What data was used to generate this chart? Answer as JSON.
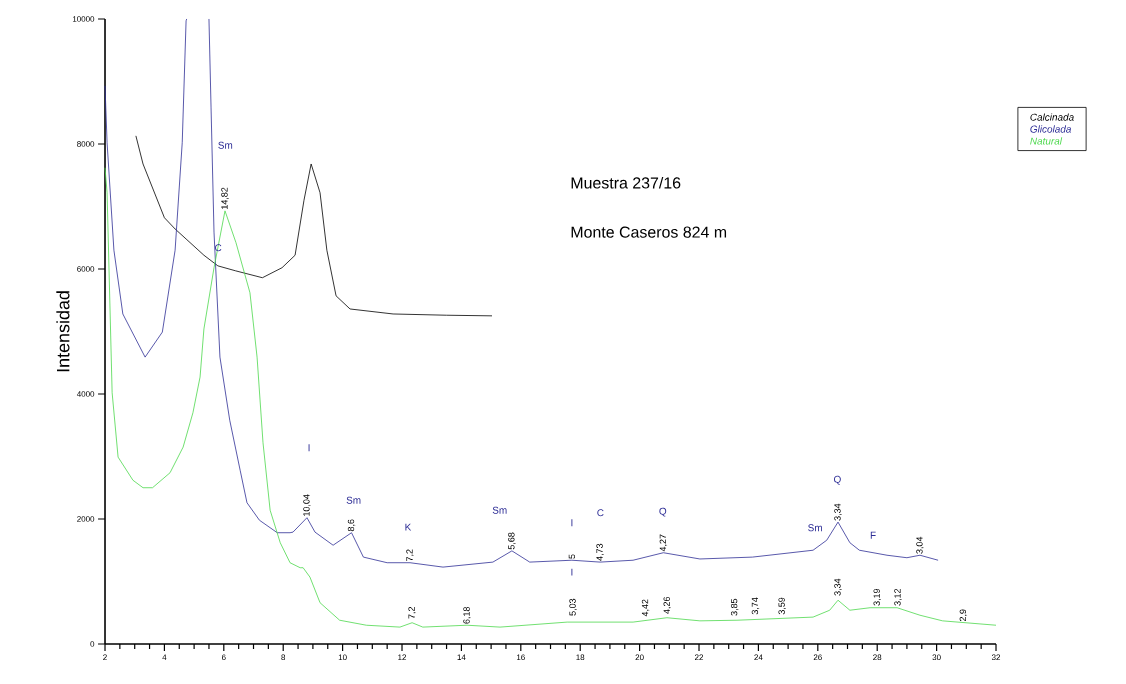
{
  "chart_data": {
    "type": "line",
    "ylabel": "Intensidad",
    "xlim": [
      2,
      32
    ],
    "ylim": [
      0,
      10000
    ],
    "xticks": [
      2,
      4,
      6,
      8,
      10,
      12,
      14,
      16,
      18,
      20,
      22,
      24,
      26,
      28,
      30,
      32
    ],
    "yticks": [
      0,
      2000,
      4000,
      6000,
      8000,
      10000
    ],
    "grid": false,
    "legend": "top right",
    "series": [
      {
        "name": "Calcinada",
        "color": "#000000",
        "x": [
          3.04,
          3.28,
          4.0,
          4.36,
          4.73,
          5.33,
          5.8,
          6.4,
          7.3,
          7.96,
          8.4,
          8.7,
          8.94,
          9.24,
          9.47,
          9.78,
          10.25,
          11.7,
          13.5,
          15.03
        ],
        "values": [
          8130,
          7680,
          6820,
          6640,
          6480,
          6220,
          6050,
          5970,
          5860,
          6020,
          6220,
          7100,
          7680,
          7220,
          6300,
          5570,
          5360,
          5280,
          5260,
          5250
        ]
      },
      {
        "name": "Glicolada",
        "color": "#2e2e96",
        "x": [
          2.0,
          2.07,
          2.3,
          2.6,
          3.35,
          3.93,
          4.36,
          4.6,
          4.73,
          4.75,
          5.1,
          5.5,
          5.57,
          5.67,
          5.87,
          6.2,
          6.55,
          6.78,
          7.2,
          7.8,
          8.23,
          8.33,
          8.8,
          9.07,
          9.68,
          10.3,
          10.7,
          11.5,
          12.27,
          13.38,
          15.06,
          15.7,
          16.3,
          17.72,
          18.67,
          19.78,
          20.8,
          22.03,
          23.8,
          25.84,
          26.3,
          26.68,
          27.08,
          27.4,
          28.33,
          29.0,
          29.44,
          30.05
        ],
        "values": [
          8930,
          8020,
          6300,
          5280,
          4590,
          4990,
          6300,
          8020,
          9970,
          10000,
          null,
          10000,
          8590,
          6590,
          4590,
          3580,
          2780,
          2260,
          1980,
          1780,
          1780,
          1790,
          2020,
          1790,
          1580,
          1780,
          1390,
          1300,
          1300,
          1230,
          1310,
          1490,
          1310,
          1340,
          1310,
          1340,
          1460,
          1360,
          1390,
          1500,
          1660,
          1950,
          1620,
          1500,
          1420,
          1380,
          1420,
          1340
        ]
      },
      {
        "name": "Natural",
        "color": "#4cd84c",
        "x": [
          2.0,
          2.07,
          2.24,
          2.44,
          2.94,
          3.28,
          3.6,
          4.19,
          4.63,
          4.96,
          5.2,
          5.33,
          5.67,
          6.04,
          6.41,
          6.88,
          7.12,
          7.32,
          7.56,
          7.9,
          8.23,
          8.57,
          8.67,
          8.9,
          9.24,
          9.9,
          10.8,
          11.93,
          12.34,
          12.7,
          14.19,
          15.3,
          17.56,
          19.78,
          20.92,
          22.03,
          23.28,
          25.84,
          26.4,
          26.68,
          27.08,
          27.76,
          28.67,
          29.44,
          30.2,
          32.0
        ],
        "values": [
          7620,
          7220,
          4020,
          2990,
          2620,
          2500,
          2500,
          2740,
          3150,
          3700,
          4270,
          5040,
          6020,
          6930,
          6420,
          5620,
          4590,
          3220,
          2140,
          1620,
          1300,
          1220,
          1220,
          1070,
          660,
          380,
          300,
          270,
          340,
          270,
          300,
          270,
          350,
          350,
          420,
          370,
          380,
          430,
          540,
          700,
          540,
          580,
          580,
          460,
          370,
          300
        ]
      }
    ],
    "annotations": [
      "Muestra 237/16",
      "Monte Caseros 824 m",
      "Sm",
      "C",
      "I",
      "Sm",
      "K",
      "Sm",
      "I",
      "I",
      "C",
      "Q",
      "Sm",
      "Q",
      "F",
      {
        "text": "14,82",
        "x": 6.04,
        "y": 6930
      },
      {
        "text": "10,04",
        "x": 8.8,
        "y": 2020
      },
      {
        "text": "8,6",
        "x": 10.3,
        "y": 1780
      },
      {
        "text": "7,2",
        "x": 12.27,
        "y": 1300
      },
      {
        "text": "5,68",
        "x": 15.7,
        "y": 1490
      },
      {
        "text": "5",
        "x": 17.72,
        "y": 1340
      },
      {
        "text": "4,73",
        "x": 18.67,
        "y": 1310
      },
      {
        "text": "4,27",
        "x": 20.8,
        "y": 1460
      },
      {
        "text": "3,34",
        "x": 26.68,
        "y": 1950
      },
      {
        "text": "3,04",
        "x": 29.44,
        "y": 1420
      },
      {
        "text": "7,2",
        "x": 12.34,
        "y": 380
      },
      {
        "text": "6,18",
        "x": 14.19,
        "y": 300
      },
      {
        "text": "5,03",
        "x": 17.76,
        "y": 430
      },
      {
        "text": "4,42",
        "x": 20.2,
        "y": 420
      },
      {
        "text": "4,26",
        "x": 20.93,
        "y": 460
      },
      {
        "text": "3,85",
        "x": 23.2,
        "y": 430
      },
      {
        "text": "3,74",
        "x": 23.9,
        "y": 450
      },
      {
        "text": "3,59",
        "x": 24.8,
        "y": 450
      },
      {
        "text": "3,34",
        "x": 26.68,
        "y": 750
      },
      {
        "text": "3,19",
        "x": 28.0,
        "y": 590
      },
      {
        "text": "3,12",
        "x": 28.7,
        "y": 590
      },
      {
        "text": "2,9",
        "x": 30.9,
        "y": 340
      }
    ]
  }
}
